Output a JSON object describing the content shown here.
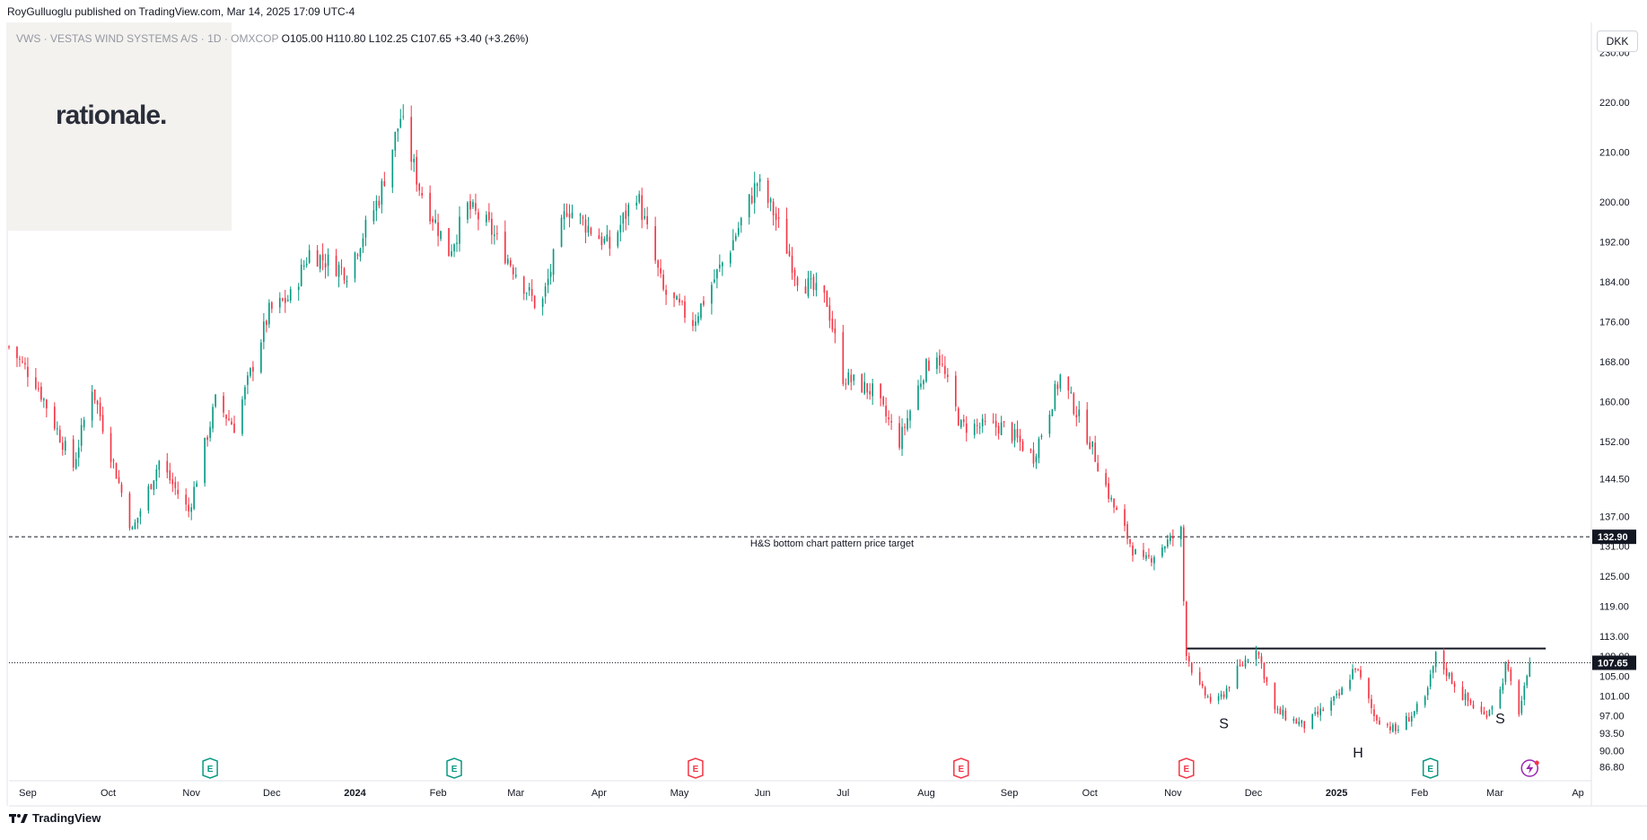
{
  "header": {
    "published": "RoyGulluoglu published on TradingView.com, Mar 14, 2025 17:09 UTC-4",
    "symbol": "VWS · VESTAS WIND SYSTEMS A/S · 1D · OMXCOP",
    "ohlc": "O105.00 H110.80 L102.25 C107.65 +3.40 (+3.26%)",
    "currency": "DKK"
  },
  "watermark": "rationale.",
  "footer": {
    "brand": "TradingView"
  },
  "colors": {
    "up": "#089981",
    "down": "#f23645",
    "price_label_bg": "#131722",
    "earnings_up": "#089981",
    "earnings_down": "#f23645",
    "dividend": "#9c27b0"
  },
  "chart_data": {
    "type": "candlestick",
    "title": "",
    "xlabel": "",
    "ylabel": "",
    "ylim": [
      84.0,
      236.0
    ],
    "y_ticks": [
      "86.80",
      "90.00",
      "93.50",
      "97.00",
      "101.00",
      "105.00",
      "109.00",
      "113.00",
      "119.00",
      "125.00",
      "131.00",
      "137.00",
      "144.50",
      "152.00",
      "160.00",
      "168.00",
      "176.00",
      "184.00",
      "192.00",
      "200.00",
      "210.00",
      "220.00",
      "230.00"
    ],
    "x_ticks": [
      {
        "label": "Sep",
        "date": "2023-09-01",
        "bold": false
      },
      {
        "label": "Oct",
        "date": "2023-10-01",
        "bold": false
      },
      {
        "label": "Nov",
        "date": "2023-11-01",
        "bold": false
      },
      {
        "label": "Dec",
        "date": "2023-12-01",
        "bold": false
      },
      {
        "label": "2024",
        "date": "2024-01-01",
        "bold": true
      },
      {
        "label": "Feb",
        "date": "2024-02-01",
        "bold": false
      },
      {
        "label": "Mar",
        "date": "2024-03-01",
        "bold": false
      },
      {
        "label": "Apr",
        "date": "2024-04-01",
        "bold": false
      },
      {
        "label": "May",
        "date": "2024-05-01",
        "bold": false
      },
      {
        "label": "Jun",
        "date": "2024-06-01",
        "bold": false
      },
      {
        "label": "Jul",
        "date": "2024-07-01",
        "bold": false
      },
      {
        "label": "Aug",
        "date": "2024-08-01",
        "bold": false
      },
      {
        "label": "Sep",
        "date": "2024-09-01",
        "bold": false
      },
      {
        "label": "Oct",
        "date": "2024-10-01",
        "bold": false
      },
      {
        "label": "Nov",
        "date": "2024-11-01",
        "bold": false
      },
      {
        "label": "Dec",
        "date": "2024-12-01",
        "bold": false
      },
      {
        "label": "2025",
        "date": "2025-01-01",
        "bold": true
      },
      {
        "label": "Feb",
        "date": "2025-02-01",
        "bold": false
      },
      {
        "label": "Mar",
        "date": "2025-03-01",
        "bold": false
      },
      {
        "label": "Ap",
        "date": "2025-04-01",
        "bold": false
      }
    ],
    "price_anchors": [
      [
        "2023-08-25",
        171
      ],
      [
        "2023-09-04",
        164
      ],
      [
        "2023-09-18",
        147
      ],
      [
        "2023-09-25",
        163
      ],
      [
        "2023-10-10",
        134
      ],
      [
        "2023-10-20",
        148
      ],
      [
        "2023-10-31",
        138
      ],
      [
        "2023-11-10",
        160
      ],
      [
        "2023-11-17",
        155
      ],
      [
        "2023-11-30",
        178
      ],
      [
        "2023-12-08",
        181
      ],
      [
        "2023-12-15",
        190
      ],
      [
        "2023-12-29",
        186
      ],
      [
        "2024-01-10",
        201
      ],
      [
        "2024-01-18",
        217
      ],
      [
        "2024-01-25",
        203
      ],
      [
        "2024-02-05",
        190
      ],
      [
        "2024-02-12",
        199
      ],
      [
        "2024-02-20",
        195
      ],
      [
        "2024-03-10",
        178
      ],
      [
        "2024-03-20",
        199
      ],
      [
        "2024-04-05",
        191
      ],
      [
        "2024-04-15",
        202
      ],
      [
        "2024-04-25",
        182
      ],
      [
        "2024-05-06",
        176
      ],
      [
        "2024-05-20",
        191
      ],
      [
        "2024-05-30",
        204
      ],
      [
        "2024-06-05",
        198
      ],
      [
        "2024-06-14",
        185
      ],
      [
        "2024-06-25",
        180
      ],
      [
        "2024-07-01",
        165
      ],
      [
        "2024-07-12",
        162
      ],
      [
        "2024-07-22",
        152
      ],
      [
        "2024-07-31",
        166
      ],
      [
        "2024-08-05",
        170
      ],
      [
        "2024-08-14",
        155
      ],
      [
        "2024-08-30",
        155
      ],
      [
        "2024-09-10",
        149
      ],
      [
        "2024-09-20",
        165
      ],
      [
        "2024-10-01",
        152
      ],
      [
        "2024-10-09",
        140
      ],
      [
        "2024-10-20",
        127
      ],
      [
        "2024-10-28",
        131
      ],
      [
        "2024-11-04",
        134
      ],
      [
        "2024-11-05",
        120
      ],
      [
        "2024-11-06",
        110
      ],
      [
        "2024-11-10",
        103
      ],
      [
        "2024-11-17",
        99
      ],
      [
        "2024-11-25",
        106
      ],
      [
        "2024-12-02",
        111
      ],
      [
        "2024-12-09",
        98
      ],
      [
        "2024-12-20",
        95
      ],
      [
        "2025-01-02",
        101
      ],
      [
        "2025-01-08",
        107
      ],
      [
        "2025-01-15",
        97
      ],
      [
        "2025-01-23",
        94
      ],
      [
        "2025-02-03",
        100
      ],
      [
        "2025-02-07",
        109
      ],
      [
        "2025-02-17",
        101
      ],
      [
        "2025-02-25",
        97
      ],
      [
        "2025-03-03",
        102
      ],
      [
        "2025-03-05",
        107
      ],
      [
        "2025-03-10",
        98
      ],
      [
        "2025-03-13",
        104
      ],
      [
        "2025-03-14",
        107.65
      ]
    ],
    "last_price": {
      "value": 107.65,
      "label": "107.65"
    },
    "target_line": {
      "value": 132.9,
      "label": "132.90",
      "text": "H&S bottom chart pattern price target"
    },
    "neckline": {
      "value": 110.5,
      "x_from": "2024-11-06",
      "x_to": "2025-03-20"
    },
    "pattern_labels": [
      {
        "text": "S",
        "date": "2024-11-20",
        "value": 94.5
      },
      {
        "text": "H",
        "date": "2025-01-09",
        "value": 88.7
      },
      {
        "text": "S",
        "date": "2025-03-03",
        "value": 95.5
      }
    ],
    "events": [
      {
        "type": "E",
        "date": "2023-11-08",
        "sign": "up"
      },
      {
        "type": "E",
        "date": "2024-02-07",
        "sign": "up"
      },
      {
        "type": "E",
        "date": "2024-05-07",
        "sign": "down"
      },
      {
        "type": "E",
        "date": "2024-08-14",
        "sign": "down"
      },
      {
        "type": "E",
        "date": "2024-11-06",
        "sign": "down"
      },
      {
        "type": "E",
        "date": "2025-02-05",
        "sign": "up"
      },
      {
        "type": "D",
        "date": "2025-03-14",
        "sign": "div"
      }
    ]
  }
}
